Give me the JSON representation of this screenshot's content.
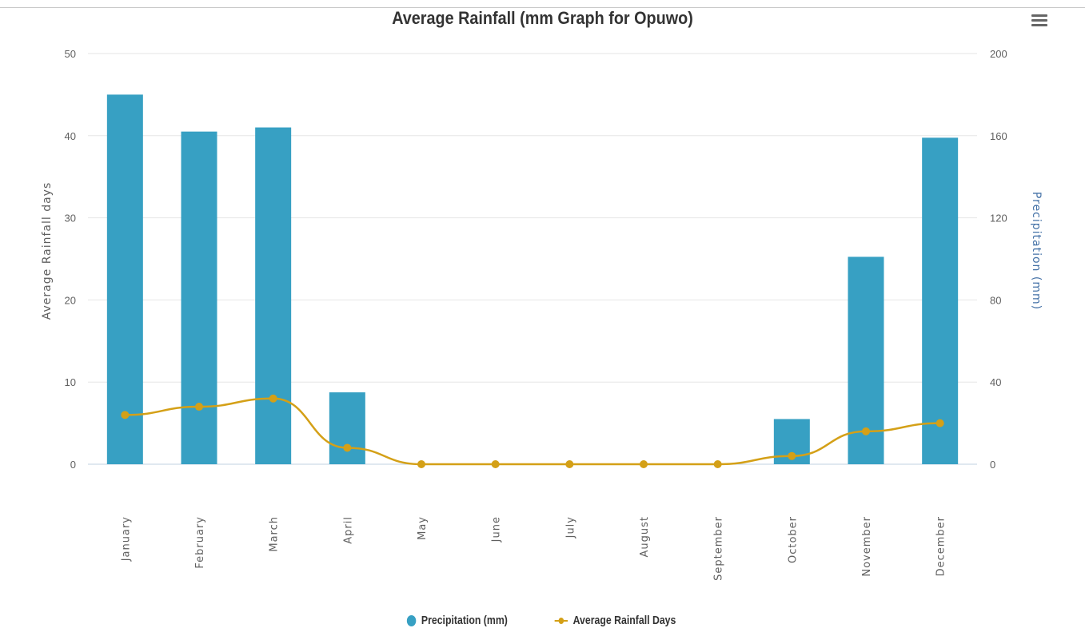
{
  "chart_data": {
    "type": "bar",
    "title": "Average Rainfall (mm Graph for Opuwo)",
    "categories": [
      "January",
      "February",
      "March",
      "April",
      "May",
      "June",
      "July",
      "August",
      "September",
      "October",
      "November",
      "December"
    ],
    "series": [
      {
        "name": "Precipitation (mm)",
        "type": "bar",
        "axis": "right",
        "color": "#37a0c3",
        "values": [
          180,
          162,
          164,
          35,
          0,
          0,
          0,
          0,
          0,
          22,
          101,
          159
        ]
      },
      {
        "name": "Average Rainfall Days",
        "type": "line",
        "axis": "left",
        "color": "#d4a017",
        "values": [
          6,
          7,
          8,
          2,
          0,
          0,
          0,
          0,
          0,
          1,
          4,
          5
        ]
      }
    ],
    "yaxis_left": {
      "label": "Average Rainfall days",
      "range": [
        0,
        50
      ],
      "ticks": [
        "0",
        "10",
        "20",
        "30",
        "40",
        "50"
      ]
    },
    "yaxis_right": {
      "label": "Precipitation (mm)",
      "label_color": "#4572a7",
      "range": [
        0,
        200
      ],
      "ticks": [
        "0",
        "40",
        "80",
        "120",
        "160",
        "200"
      ]
    },
    "grid": true,
    "legend": "bottom-center"
  },
  "toolbar": {
    "menu_icon": "hamburger-menu-icon"
  }
}
